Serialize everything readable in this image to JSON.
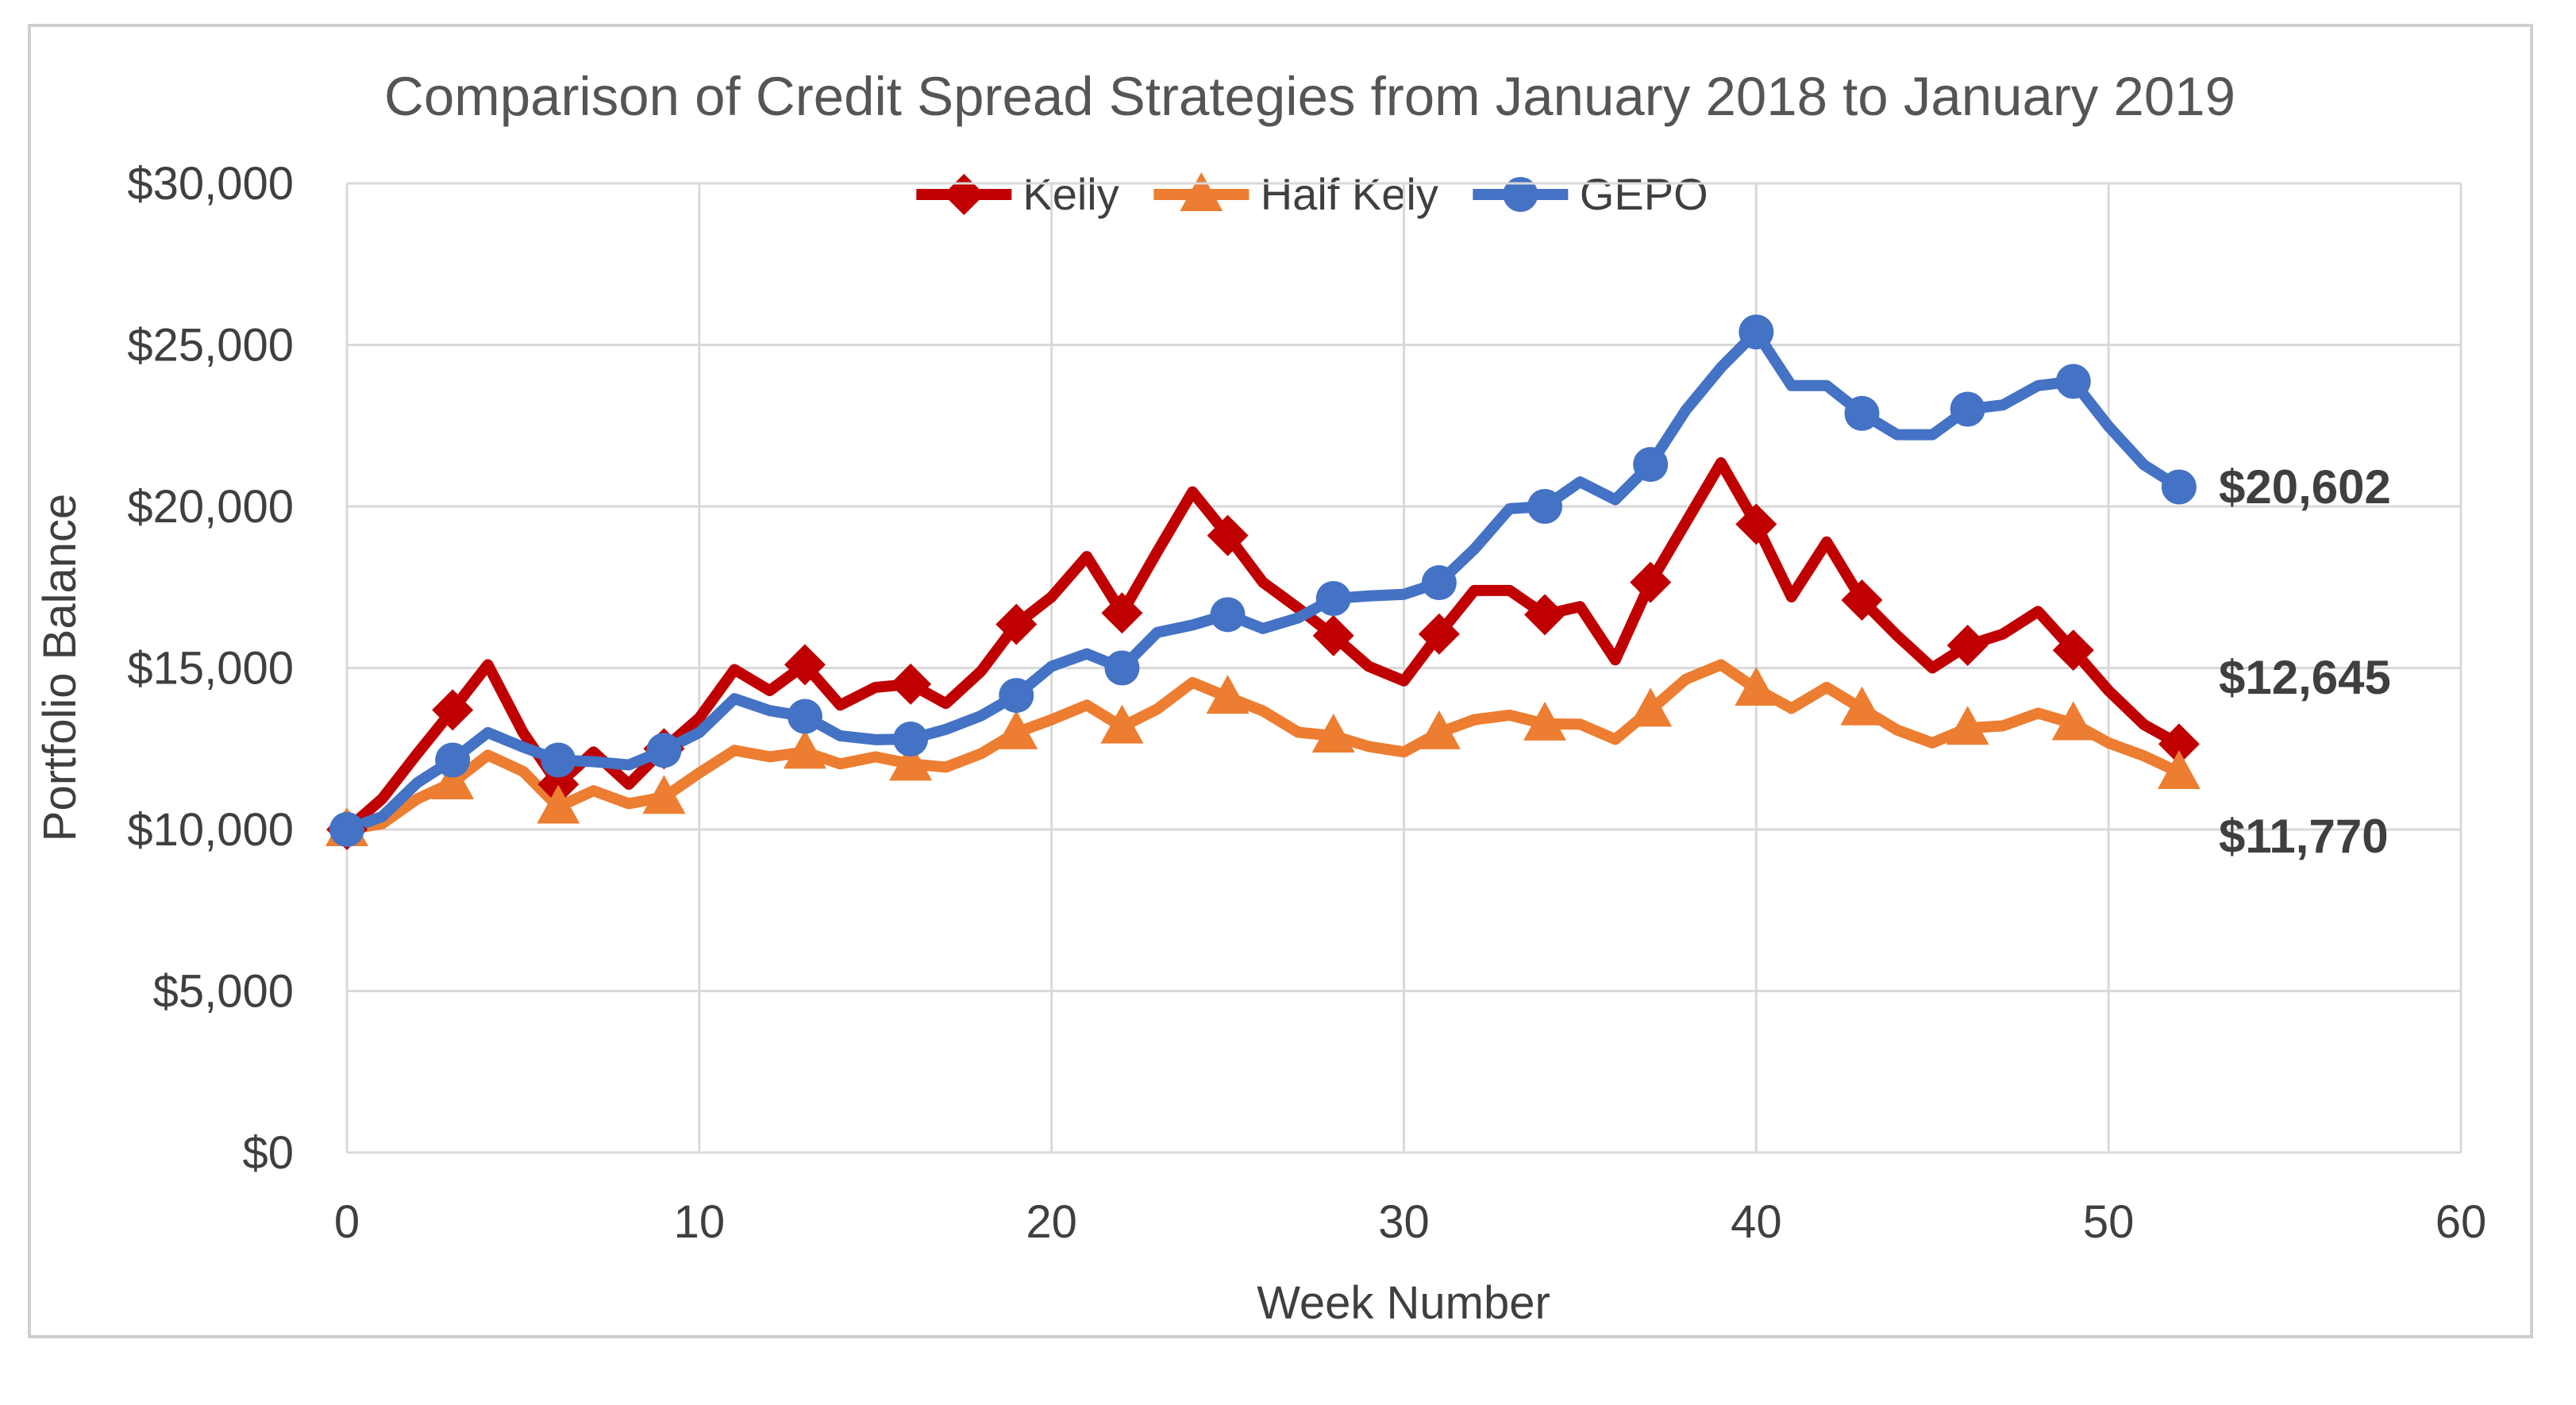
{
  "title": "Comparison of Credit Spread Strategies from January 2018 to January 2019",
  "colors": {
    "kelly": "#C00000",
    "half_kelly": "#ED7D31",
    "gepo": "#4472C4",
    "gridline": "#D9D9D9",
    "axis_text": "#3f3f3f",
    "title_text": "#555555",
    "chart_border": "#D0CECE",
    "background": "#ffffff"
  },
  "chart_data": {
    "type": "line",
    "title": "Comparison of Credit Spread Strategies from January 2018 to January 2019",
    "xlabel": "Week Number",
    "ylabel": "Portfolio Balance",
    "xlim": [
      0,
      60
    ],
    "ylim": [
      0,
      30000
    ],
    "x_ticks": [
      0,
      10,
      20,
      30,
      40,
      50,
      60
    ],
    "y_ticks": [
      0,
      5000,
      10000,
      15000,
      20000,
      25000,
      30000
    ],
    "y_tick_labels": [
      "$0",
      "$5,000",
      "$10,000",
      "$15,000",
      "$20,000",
      "$25,000",
      "$30,000"
    ],
    "grid": true,
    "legend_position": "top-center",
    "weeks": [
      0,
      1,
      2,
      3,
      4,
      5,
      6,
      7,
      8,
      9,
      10,
      11,
      12,
      13,
      14,
      15,
      16,
      17,
      18,
      19,
      20,
      21,
      22,
      23,
      24,
      25,
      26,
      27,
      28,
      29,
      30,
      31,
      32,
      33,
      34,
      35,
      36,
      37,
      38,
      39,
      40,
      41,
      42,
      43,
      44,
      45,
      46,
      47,
      48,
      49,
      50,
      51,
      52
    ],
    "marker_weeks": [
      0,
      3,
      6,
      9,
      13,
      16,
      19,
      22,
      25,
      28,
      31,
      34,
      37,
      40,
      43,
      46,
      49,
      52
    ],
    "series": [
      {
        "name": "Kelly",
        "color": "#C00000",
        "marker": "diamond",
        "end_label": "$12,645",
        "final_value": 12645,
        "values": [
          10000,
          10950,
          12350,
          13700,
          15100,
          13000,
          11400,
          12400,
          11400,
          12500,
          13450,
          14950,
          14300,
          15100,
          13850,
          14400,
          14500,
          13900,
          14900,
          16350,
          17200,
          18450,
          16700,
          18600,
          20450,
          19100,
          17650,
          16850,
          16000,
          15050,
          14600,
          16050,
          17400,
          17400,
          16650,
          16900,
          15250,
          17650,
          19500,
          21350,
          19450,
          17200,
          18900,
          17100,
          16000,
          15000,
          15700,
          16050,
          16750,
          15550,
          14300,
          13250,
          12645
        ]
      },
      {
        "name": "Half Kely",
        "color": "#ED7D31",
        "marker": "triangle",
        "end_label": "$11,770",
        "final_value": 11770,
        "values": [
          10000,
          10180,
          10950,
          11450,
          12300,
          11800,
          10700,
          11200,
          10800,
          11000,
          11750,
          12450,
          12250,
          12400,
          12030,
          12250,
          12030,
          11930,
          12350,
          13000,
          13400,
          13850,
          13180,
          13730,
          14550,
          14100,
          13670,
          13010,
          12900,
          12570,
          12400,
          13000,
          13400,
          13540,
          13270,
          13260,
          12790,
          13700,
          14650,
          15100,
          14350,
          13750,
          14400,
          13740,
          13080,
          12680,
          13140,
          13210,
          13600,
          13280,
          12680,
          12280,
          11770
        ]
      },
      {
        "name": "GEPO",
        "color": "#4472C4",
        "marker": "circle",
        "end_label": "$20,602",
        "final_value": 20602,
        "values": [
          10000,
          10400,
          11450,
          12150,
          13000,
          12550,
          12150,
          12100,
          12000,
          12450,
          13000,
          14050,
          13680,
          13500,
          12900,
          12780,
          12800,
          13100,
          13520,
          14150,
          15050,
          15440,
          15000,
          16100,
          16330,
          16650,
          16220,
          16550,
          17150,
          17230,
          17280,
          17640,
          18680,
          19930,
          20000,
          20760,
          20210,
          21300,
          22980,
          24300,
          25400,
          23740,
          23740,
          22880,
          22220,
          22220,
          23010,
          23140,
          23740,
          23870,
          22480,
          21290,
          20602
        ]
      }
    ]
  }
}
